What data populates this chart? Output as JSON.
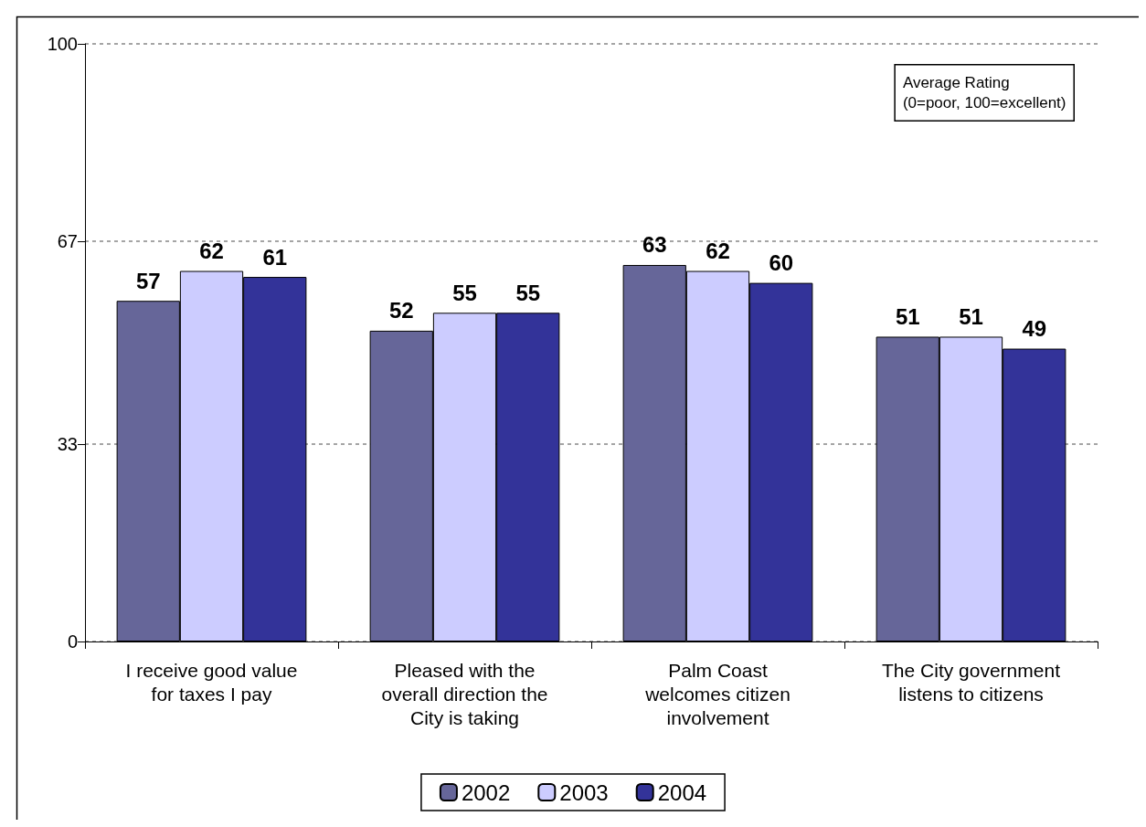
{
  "chart_data": {
    "type": "bar",
    "categories": [
      "I receive good value\nfor taxes I pay",
      "Pleased with the\noverall direction the\nCity is taking",
      "Palm Coast\nwelcomes citizen\ninvolvement",
      "The City government\nlistens to citizens"
    ],
    "series": [
      {
        "name": "2002",
        "color": "#666699",
        "values": [
          57,
          52,
          63,
          51
        ]
      },
      {
        "name": "2003",
        "color": "#ccccff",
        "values": [
          62,
          55,
          62,
          51
        ]
      },
      {
        "name": "2004",
        "color": "#333399",
        "values": [
          61,
          55,
          60,
          49
        ]
      }
    ],
    "ylim": [
      0,
      100
    ],
    "yticks": [
      0,
      33,
      67,
      100
    ],
    "grid": "y",
    "legend": "bottom",
    "data_labels": true,
    "annotations": [
      "Average Rating\n(0=poor, 100=excellent)"
    ]
  }
}
